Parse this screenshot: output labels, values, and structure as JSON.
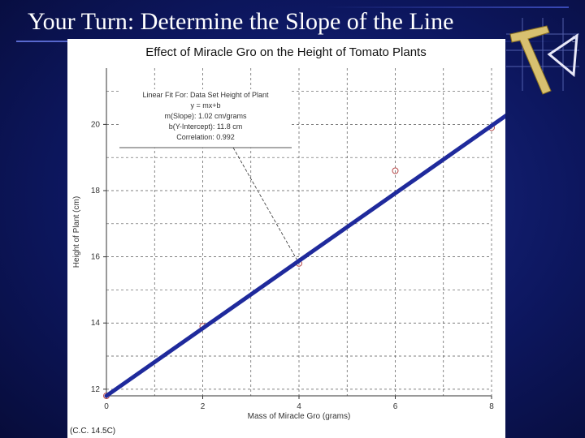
{
  "slide": {
    "title": "Your Turn: Determine the Slope of the Line"
  },
  "footnote": "(C.C. 14.5C)",
  "colors": {
    "background": "#0d1760",
    "fit_line": "#1f2a9c",
    "points": "#b84a4a",
    "grid": "#555555"
  },
  "chart_data": {
    "type": "scatter",
    "title": "Effect of Miracle Gro on the Height of Tomato Plants",
    "xlabel": "Mass of Miracle Gro (grams)",
    "ylabel": "Height of Plant (cm)",
    "xlim": [
      0,
      8
    ],
    "ylim": [
      11.8,
      21.7
    ],
    "xticks": [
      0,
      2,
      4,
      6,
      8
    ],
    "yticks": [
      12,
      14,
      16,
      18,
      20
    ],
    "grid": true,
    "series": [
      {
        "kind": "points",
        "x": [
          0,
          2,
          4,
          6,
          8
        ],
        "y": [
          11.8,
          13.9,
          15.8,
          18.6,
          19.9
        ]
      }
    ],
    "fit": {
      "slope": 1.02,
      "intercept": 11.8,
      "x_range": [
        0,
        9.3
      ]
    },
    "annotation": {
      "lines": [
        "Linear Fit For: Data Set Height of Plant",
        "y = mx+b",
        "m(Slope): 1.02 cm/grams",
        "b(Y-Intercept): 11.8 cm",
        "Correlation: 0.992"
      ],
      "points_to": [
        4,
        15.8
      ]
    }
  }
}
